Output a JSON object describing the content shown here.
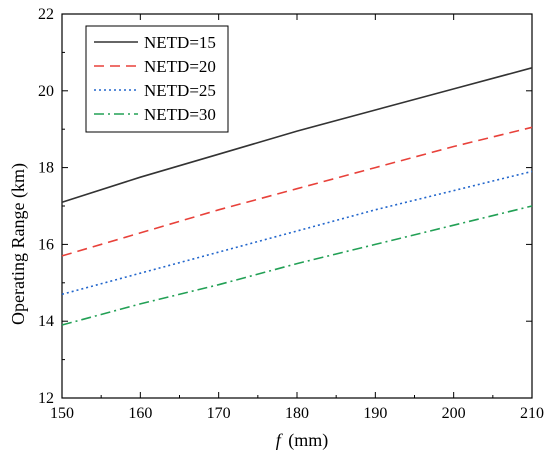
{
  "chart_data": {
    "type": "line",
    "title": "",
    "xlabel_italic": "f",
    "xlabel_unit": "(mm)",
    "ylabel": "Operating Range (km)",
    "xlim": [
      150,
      210
    ],
    "ylim": [
      12,
      22
    ],
    "xticks": [
      150,
      160,
      170,
      180,
      190,
      200,
      210
    ],
    "yticks": [
      12,
      14,
      16,
      18,
      20,
      22
    ],
    "grid": false,
    "legend_position": "top-left",
    "x": [
      150,
      160,
      170,
      180,
      190,
      200,
      210
    ],
    "series": [
      {
        "name": "NETD=15",
        "color": "#333333",
        "dash": "solid",
        "values": [
          17.1,
          17.75,
          18.35,
          18.95,
          19.5,
          20.05,
          20.6
        ]
      },
      {
        "name": "NETD=20",
        "color": "#e8413a",
        "dash": "dashed",
        "values": [
          15.7,
          16.3,
          16.9,
          17.45,
          18.0,
          18.55,
          19.05
        ]
      },
      {
        "name": "NETD=25",
        "color": "#2266cc",
        "dash": "dotted",
        "values": [
          14.7,
          15.25,
          15.8,
          16.35,
          16.9,
          17.4,
          17.9
        ]
      },
      {
        "name": "NETD=30",
        "color": "#22a055",
        "dash": "dashdot",
        "values": [
          13.9,
          14.45,
          14.95,
          15.5,
          16.0,
          16.5,
          17.0
        ]
      }
    ]
  }
}
